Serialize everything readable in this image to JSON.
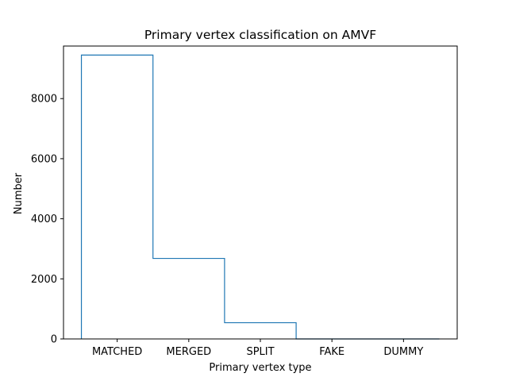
{
  "chart_data": {
    "type": "bar",
    "style": "step-histogram",
    "title": "Primary vertex classification on AMVF",
    "xlabel": "Primary vertex type",
    "ylabel": "Number",
    "categories": [
      "MATCHED",
      "MERGED",
      "SPLIT",
      "FAKE",
      "DUMMY"
    ],
    "values": [
      9450,
      2680,
      540,
      0,
      0
    ],
    "ylim": [
      0,
      9750
    ],
    "yticks": [
      0,
      2000,
      4000,
      6000,
      8000
    ],
    "ytick_labels": [
      "0",
      "2000",
      "4000",
      "6000",
      "8000"
    ],
    "grid": false,
    "line_color": "#1f77b4"
  }
}
